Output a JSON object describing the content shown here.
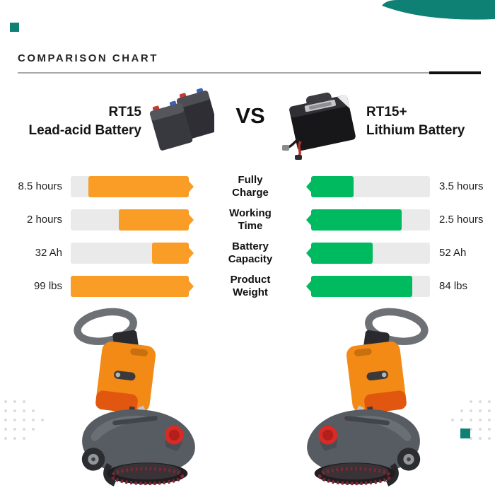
{
  "heading": {
    "title": "COMPARISON CHART"
  },
  "products": {
    "left": {
      "model": "RT15",
      "name": "Lead-acid Battery"
    },
    "vs_label": "VS",
    "right": {
      "model": "RT15+",
      "name": "Lithium Battery"
    }
  },
  "comparison": {
    "rows": [
      {
        "metric": "Fully Charge",
        "lead_acid_value": "8.5 hours",
        "lead_acid_pct": 85,
        "lithium_value": "3.5 hours",
        "lithium_pct": 36
      },
      {
        "metric": "Working Time",
        "lead_acid_value": "2 hours",
        "lead_acid_pct": 59,
        "lithium_value": "2.5 hours",
        "lithium_pct": 76
      },
      {
        "metric": "Battery Capacity",
        "lead_acid_value": "32 Ah",
        "lead_acid_pct": 31,
        "lithium_value": "52 Ah",
        "lithium_pct": 52
      },
      {
        "metric": "Product Weight",
        "lead_acid_value": "99 lbs",
        "lead_acid_pct": 100,
        "lithium_value": "84 lbs",
        "lithium_pct": 85
      }
    ]
  },
  "chart_data": {
    "type": "bar",
    "title": "COMPARISON CHART",
    "layout": "mirrored horizontal bars, metric labels centered between the two sides, value labels on outer edges",
    "categories": [
      "Fully Charge",
      "Working Time",
      "Battery Capacity",
      "Product Weight"
    ],
    "series": [
      {
        "name": "RT15 Lead-acid Battery",
        "side": "left",
        "color": "#F99D26",
        "values": [
          8.5,
          2,
          32,
          99
        ],
        "labels": [
          "8.5 hours",
          "2 hours",
          "32 Ah",
          "99 lbs"
        ],
        "bar_fill_pct": [
          85,
          59,
          31,
          100
        ]
      },
      {
        "name": "RT15+ Lithium Battery",
        "side": "right",
        "color": "#00BA5F",
        "values": [
          3.5,
          2.5,
          52,
          84
        ],
        "labels": [
          "3.5 hours",
          "2.5 hours",
          "52 Ah",
          "84 lbs"
        ],
        "bar_fill_pct": [
          36,
          76,
          52,
          85
        ]
      }
    ],
    "legend_position": "none",
    "grid": false
  },
  "icons": {
    "lead_acid_battery_image": "two dark lead-acid battery blocks with red and blue terminals",
    "lithium_battery_image": "black lithium battery box with carry handle and red/black wires",
    "machine_image": "orange and gray walk-behind floor scrubber",
    "swoosh": "teal brush swoosh top-right corner",
    "dots": "light gray diamond dot grid"
  },
  "colors": {
    "lead_acid_bar": "#F99D26",
    "lithium_bar": "#00BA5F",
    "bar_track": "#EAEAEA",
    "accent_teal": "#0E8174",
    "rule_gray": "#A9A9A9",
    "rule_black": "#101010",
    "machine_orange": "#F28A15",
    "machine_gray": "#575B62",
    "cap_red": "#D92B25"
  }
}
